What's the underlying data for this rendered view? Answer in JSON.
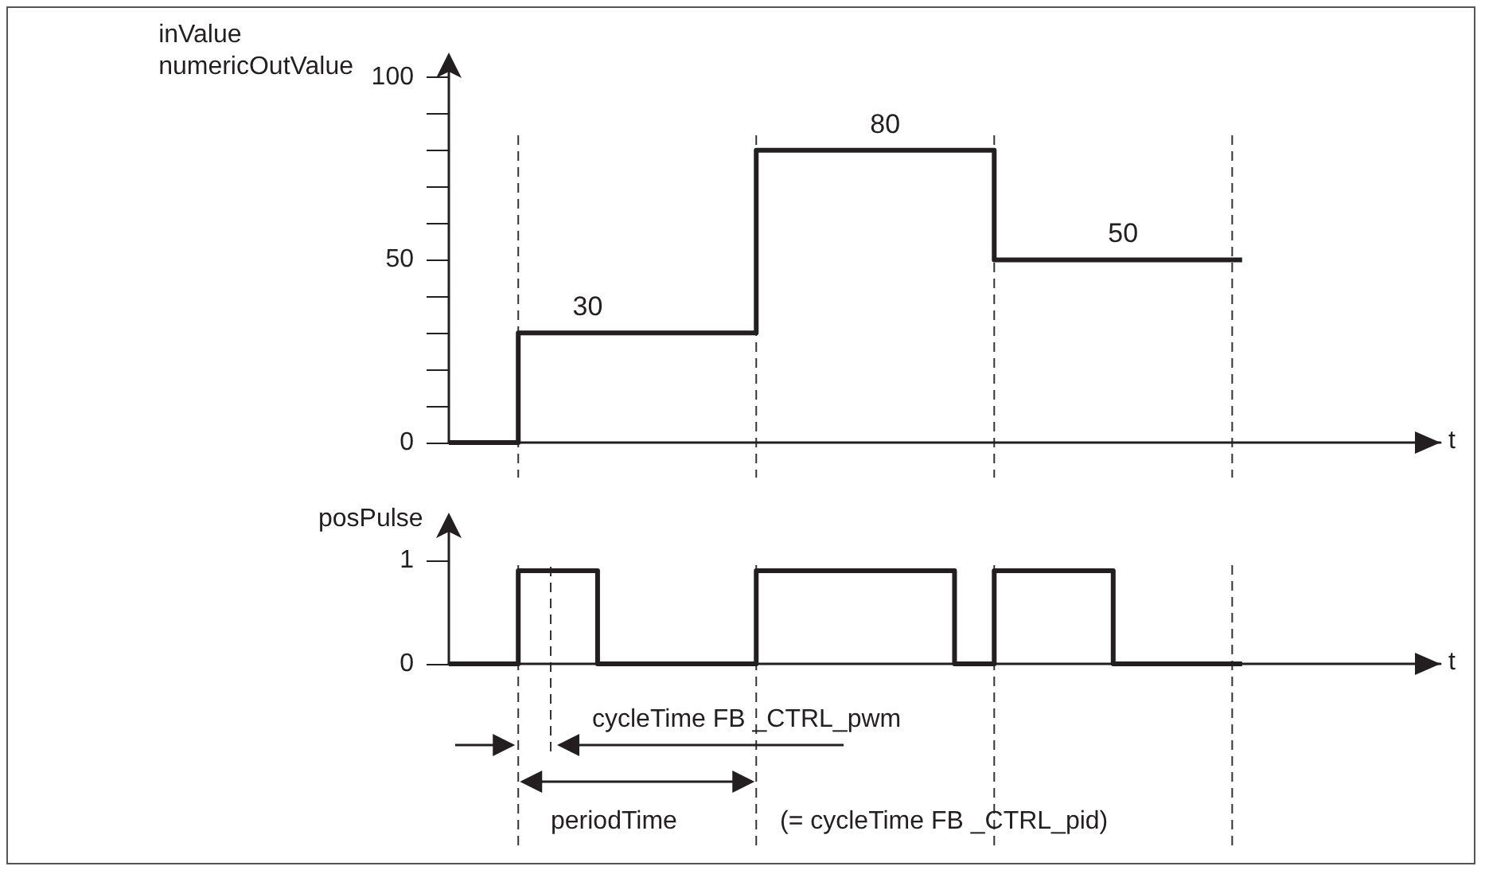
{
  "chart_data": [
    {
      "type": "step",
      "ylabel": "inValue\nnumericOutValue",
      "annotations": [
        "t"
      ],
      "categories": [
        null,
        null,
        null,
        null,
        null,
        null,
        null,
        null,
        null,
        null,
        null,
        null,
        null,
        null,
        null,
        null,
        null,
        null,
        null,
        null,
        null,
        null,
        null,
        null,
        null,
        null,
        null,
        null,
        null,
        null,
        null,
        null,
        null,
        null,
        null,
        null,
        null,
        null,
        null,
        null,
        null
      ],
      "series": [
        {
          "color": "#231f20",
          "values": [
            0,
            0,
            0,
            0,
            30,
            30,
            30,
            30,
            30,
            30,
            30,
            30,
            30,
            30,
            30,
            30,
            80,
            80,
            80,
            80,
            80,
            80,
            80,
            80,
            80,
            80,
            80,
            80,
            50,
            50,
            50,
            50,
            50,
            50,
            50,
            50,
            50,
            50,
            50,
            50,
            50
          ],
          "value_labels": [
            null,
            null,
            null,
            null,
            null,
            null,
            null,
            "30",
            null,
            null,
            null,
            null,
            null,
            null,
            null,
            null,
            null,
            null,
            null,
            null,
            null,
            null,
            "80",
            null,
            null,
            null,
            null,
            null,
            null,
            null,
            null,
            null,
            null,
            null,
            "50",
            null,
            null,
            null,
            null,
            null,
            null
          ]
        }
      ],
      "ylim": [
        0,
        105
      ],
      "yticks": [
        0,
        {
          "value": 10,
          "label": null
        },
        {
          "value": 20,
          "label": null
        },
        {
          "value": 30,
          "label": null
        },
        {
          "value": 40,
          "label": null
        },
        50,
        {
          "value": 60,
          "label": null
        },
        {
          "value": 70,
          "label": null
        },
        {
          "value": 80,
          "label": null
        },
        {
          "value": 90,
          "label": null
        },
        100
      ],
      "tick_labels": "y"
    },
    {
      "type": "step",
      "ylabel": "posPulse",
      "categories": [
        null,
        null,
        null,
        null,
        null,
        null,
        null,
        null,
        null,
        null,
        null,
        null,
        null,
        null,
        null,
        null,
        null,
        null,
        null,
        null,
        null,
        null,
        null,
        null,
        null,
        null,
        null,
        null,
        null,
        null,
        null,
        null,
        null,
        null,
        null,
        null,
        null,
        null,
        null,
        null,
        null
      ],
      "series": [
        {
          "color": "#231f20",
          "values": [
            0,
            0,
            0,
            0,
            0.9,
            0.9,
            0.9,
            0.9,
            0,
            0,
            0,
            0,
            0,
            0,
            0,
            0,
            0.9,
            0.9,
            0.9,
            0.9,
            0.9,
            0.9,
            0.9,
            0.9,
            0.9,
            0.9,
            0,
            0,
            0.9,
            0.9,
            0.9,
            0.9,
            0.9,
            0.9,
            0,
            0,
            0,
            0,
            0,
            0,
            0
          ]
        }
      ],
      "ylim": [
        0,
        1.4
      ],
      "yticks": [
        0,
        1
      ],
      "annotations": [
        "t",
        "cycleTime FB _CTRL_pwm",
        "periodTime",
        "(= cycleTime FB _CTRL_pid)"
      ],
      "tick_labels": "y"
    }
  ]
}
